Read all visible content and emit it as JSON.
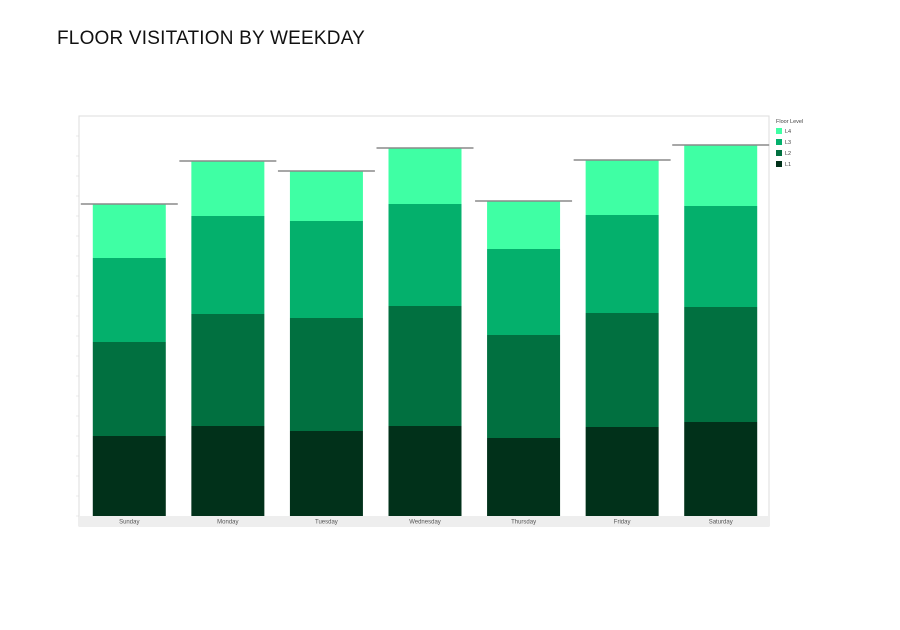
{
  "page": {
    "title": "FLOOR VISITATION BY WEEKDAY"
  },
  "chart_data": {
    "type": "bar",
    "stacked": true,
    "title": "FLOOR VISITATION BY WEEKDAY",
    "xlabel": "",
    "ylabel": "",
    "categories": [
      "Sunday",
      "Monday",
      "Tuesday",
      "Wednesday",
      "Thursday",
      "Friday",
      "Saturday"
    ],
    "series": [
      {
        "name": "L1",
        "color": "#01311A",
        "values": [
          80,
          90,
          85,
          90,
          78,
          89,
          94
        ]
      },
      {
        "name": "L2",
        "color": "#017040",
        "values": [
          94,
          112,
          113,
          120,
          103,
          114,
          115
        ]
      },
      {
        "name": "L3",
        "color": "#04B06C",
        "values": [
          84,
          98,
          97,
          102,
          86,
          98,
          101
        ]
      },
      {
        "name": "L4",
        "color": "#3FFFA4",
        "values": [
          54,
          55,
          50,
          56,
          48,
          55,
          61
        ]
      }
    ],
    "ylim": [
      0,
      400
    ],
    "y_gridlines": false,
    "y_axis_labels_shown": false,
    "total_reference_lines": true,
    "legend": {
      "title": "Floor Level",
      "placement": "top-right",
      "order": [
        "L4",
        "L3",
        "L2",
        "L1"
      ]
    }
  }
}
